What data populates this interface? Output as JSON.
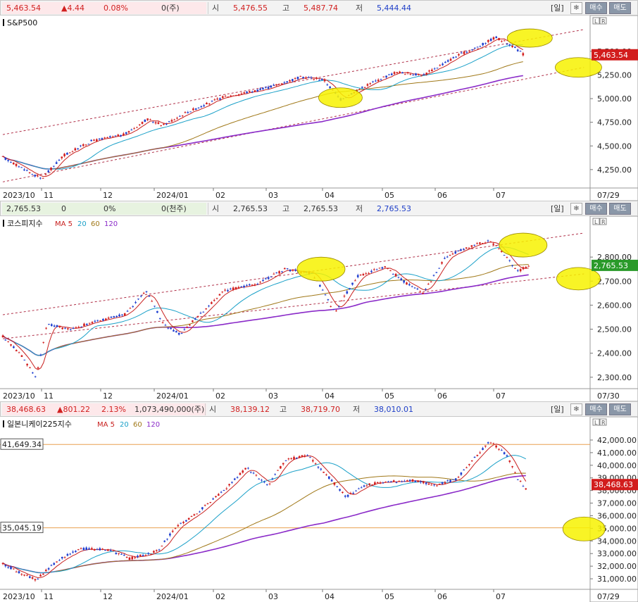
{
  "panels": [
    {
      "quote": {
        "price": "5,463.54",
        "change": "▲4.44",
        "pct": "0.08%",
        "volume": "0(주)",
        "open_label": "시",
        "open": "5,476.55",
        "high_label": "고",
        "high": "5,487.74",
        "low_label": "저",
        "low": "5,444.44",
        "period": "[일]",
        "btn_buy": "매수",
        "btn_sell": "매도",
        "direction": "up"
      },
      "title": "S&P500",
      "ma_legend": [],
      "last_label": "5,463.54",
      "extra_labels": [],
      "axis": {
        "min": 4100,
        "max": 5700,
        "ticks": [
          4250,
          4500,
          4750,
          5000,
          5250,
          5500
        ],
        "tick_labels": [
          "4,250.00",
          "4,500.00",
          "4,750.00",
          "5,000.00",
          "5,250.00",
          "5,500.00"
        ]
      },
      "dates": [
        "2023/10",
        "11",
        "12",
        "2024/01",
        "02",
        "03",
        "04",
        "05",
        "06",
        "07",
        "07/29"
      ],
      "chart_data": {
        "type": "candlestick",
        "x": [
          "2023-10",
          "2023-11",
          "2023-12",
          "2024-01",
          "2024-02",
          "2024-03",
          "2024-04",
          "2024-05",
          "2024-06",
          "2024-07"
        ],
        "close": [
          4200,
          4500,
          4750,
          4850,
          5080,
          5220,
          5080,
          5280,
          5450,
          5600
        ],
        "last": 5463.54,
        "ylim": [
          4100,
          5700
        ]
      }
    },
    {
      "quote": {
        "price": "2,765.53",
        "change": "0",
        "pct": "0%",
        "volume": "0(천주)",
        "open_label": "시",
        "open": "2,765.53",
        "high_label": "고",
        "high": "2,765.53",
        "low_label": "저",
        "low": "2,765.53",
        "period": "[일]",
        "btn_buy": "매수",
        "btn_sell": "매도",
        "direction": "flat"
      },
      "title": "코스피지수",
      "ma_legend": [
        {
          "text": "MA 5",
          "color": "#c8201f"
        },
        {
          "text": "20",
          "color": "#1aa0c8"
        },
        {
          "text": "60",
          "color": "#a07818"
        },
        {
          "text": "120",
          "color": "#8a2ac8"
        }
      ],
      "last_label": "2,765.53",
      "extra_labels": [],
      "axis": {
        "min": 2270,
        "max": 2900,
        "ticks": [
          2300,
          2400,
          2500,
          2600,
          2700,
          2800
        ],
        "tick_labels": [
          "2,300.00",
          "2,400.00",
          "2,500.00",
          "2,600.00",
          "2,700.00",
          "2,800.00"
        ]
      },
      "dates": [
        "2023/10",
        "11",
        "12",
        "2024/01",
        "02",
        "03",
        "04",
        "05",
        "06",
        "07",
        "07/30"
      ],
      "chart_data": {
        "type": "candlestick",
        "x": [
          "2023-10",
          "2023-11",
          "2023-12",
          "2024-01",
          "2024-02",
          "2024-03",
          "2024-04",
          "2024-05",
          "2024-06",
          "2024-07"
        ],
        "close": [
          2300,
          2480,
          2520,
          2560,
          2640,
          2720,
          2600,
          2680,
          2800,
          2850
        ],
        "last": 2765.53,
        "ylim": [
          2270,
          2900
        ]
      }
    },
    {
      "quote": {
        "price": "38,468.63",
        "change": "▲801.22",
        "pct": "2.13%",
        "volume": "1,073,490,000(주)",
        "open_label": "시",
        "open": "38,139.12",
        "high_label": "고",
        "high": "38,719.70",
        "low_label": "저",
        "low": "38,010.01",
        "period": "[일]",
        "btn_buy": "매수",
        "btn_sell": "매도",
        "direction": "up"
      },
      "title": "일본니케이225지수",
      "ma_legend": [
        {
          "text": "MA 5",
          "color": "#c8201f"
        },
        {
          "text": "20",
          "color": "#1aa0c8"
        },
        {
          "text": "60",
          "color": "#a07818"
        },
        {
          "text": "120",
          "color": "#8a2ac8"
        }
      ],
      "last_label": "38,468.63",
      "extra_labels": [
        "41,649.34",
        "35,045.19"
      ],
      "axis": {
        "min": 30500,
        "max": 42500,
        "ticks": [
          31000,
          32000,
          33000,
          34000,
          35000,
          36000,
          37000,
          38000,
          39000,
          40000,
          41000,
          42000
        ],
        "tick_labels": [
          "31,000.00",
          "32,000.00",
          "33,000.00",
          "34,000.00",
          "35,000.00",
          "36,000.00",
          "37,000.00",
          "38,000.00",
          "39,000.00",
          "40,000.00",
          "41,000.00",
          "42,000.00"
        ]
      },
      "dates": [
        "2023/10",
        "11",
        "12",
        "2024/01",
        "02",
        "03",
        "04",
        "05",
        "06",
        "07",
        "07/29"
      ],
      "chart_data": {
        "type": "candlestick",
        "x": [
          "2023-10",
          "2023-11",
          "2023-12",
          "2024-01",
          "2024-02",
          "2024-03",
          "2024-04",
          "2024-05",
          "2024-06",
          "2024-07"
        ],
        "close": [
          31000,
          33500,
          33400,
          35500,
          38500,
          40500,
          38000,
          38800,
          39500,
          41500
        ],
        "last": 38468.63,
        "ylim": [
          30500,
          42500
        ],
        "hlines": [
          41649.34,
          35045.19
        ]
      }
    }
  ],
  "colors": {
    "up": "#d21d1d",
    "down": "#1f3fd0",
    "ma5": "#c8201f",
    "ma20": "#1aa0c8",
    "ma60": "#a07818",
    "ma120": "#8a2ac8",
    "trend": "#b03048",
    "ellipse": "#f7f200",
    "hline": "#e9a050"
  }
}
